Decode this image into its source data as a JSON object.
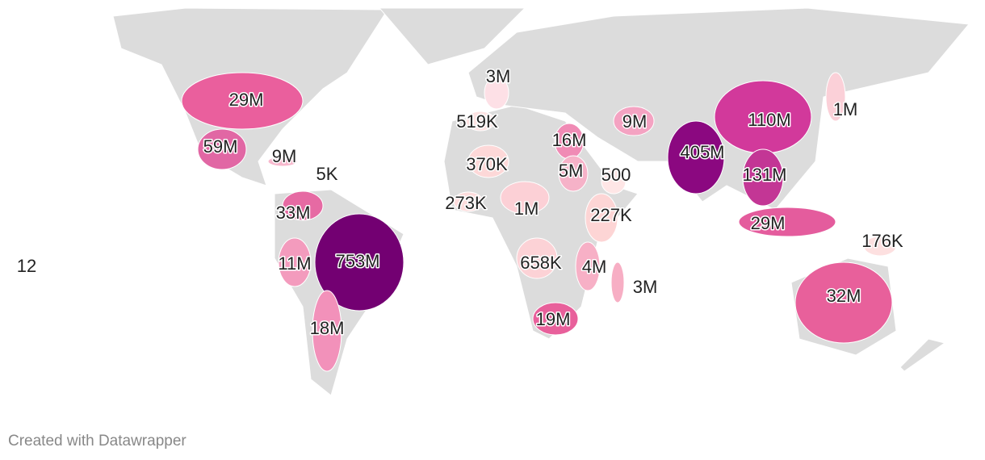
{
  "map": {
    "regions": [
      {
        "label": "29M",
        "color": "#ea5f9d"
      },
      {
        "label": "59M",
        "color": "#e167a4"
      },
      {
        "label": "9M",
        "color": "#f7b8cd"
      },
      {
        "label": "5K"
      },
      {
        "label": "33M",
        "color": "#e66aa3"
      },
      {
        "label": "753M",
        "color": "#730072"
      },
      {
        "label": "11M",
        "color": "#f39bbd"
      },
      {
        "label": "18M",
        "color": "#f291ba"
      },
      {
        "label": "12"
      },
      {
        "label": "3M",
        "color": "#fde0e6"
      },
      {
        "label": "519K",
        "color": "#fde3e3"
      },
      {
        "label": "370K",
        "color": "#fdd8d8"
      },
      {
        "label": "273K",
        "color": "#fddcdc"
      },
      {
        "label": "1M",
        "color": "#fcd0d6"
      },
      {
        "label": "16M",
        "color": "#f08bb5"
      },
      {
        "label": "5M",
        "color": "#f6b2c8"
      },
      {
        "label": "500",
        "color": "#fee6e6"
      },
      {
        "label": "227K",
        "color": "#fdd5d5"
      },
      {
        "label": "658K",
        "color": "#fcd2d6"
      },
      {
        "label": "4M",
        "color": "#f7b0c6"
      },
      {
        "label": "3M",
        "color": "#f7aec4"
      },
      {
        "label": "19M",
        "color": "#e8609b"
      },
      {
        "label": "9M",
        "color": "#f4a3c2"
      },
      {
        "label": "405M",
        "color": "#8b0880"
      },
      {
        "label": "110M",
        "color": "#d2399b"
      },
      {
        "label": "1M",
        "color": "#fbd0d8"
      },
      {
        "label": "131M",
        "color": "#c33695"
      },
      {
        "label": "29M",
        "color": "#e45c9d"
      },
      {
        "label": "176K",
        "color": "#fde0e0"
      },
      {
        "label": "32M",
        "color": "#e8609b"
      }
    ],
    "footer": "Created with Datawrapper"
  }
}
